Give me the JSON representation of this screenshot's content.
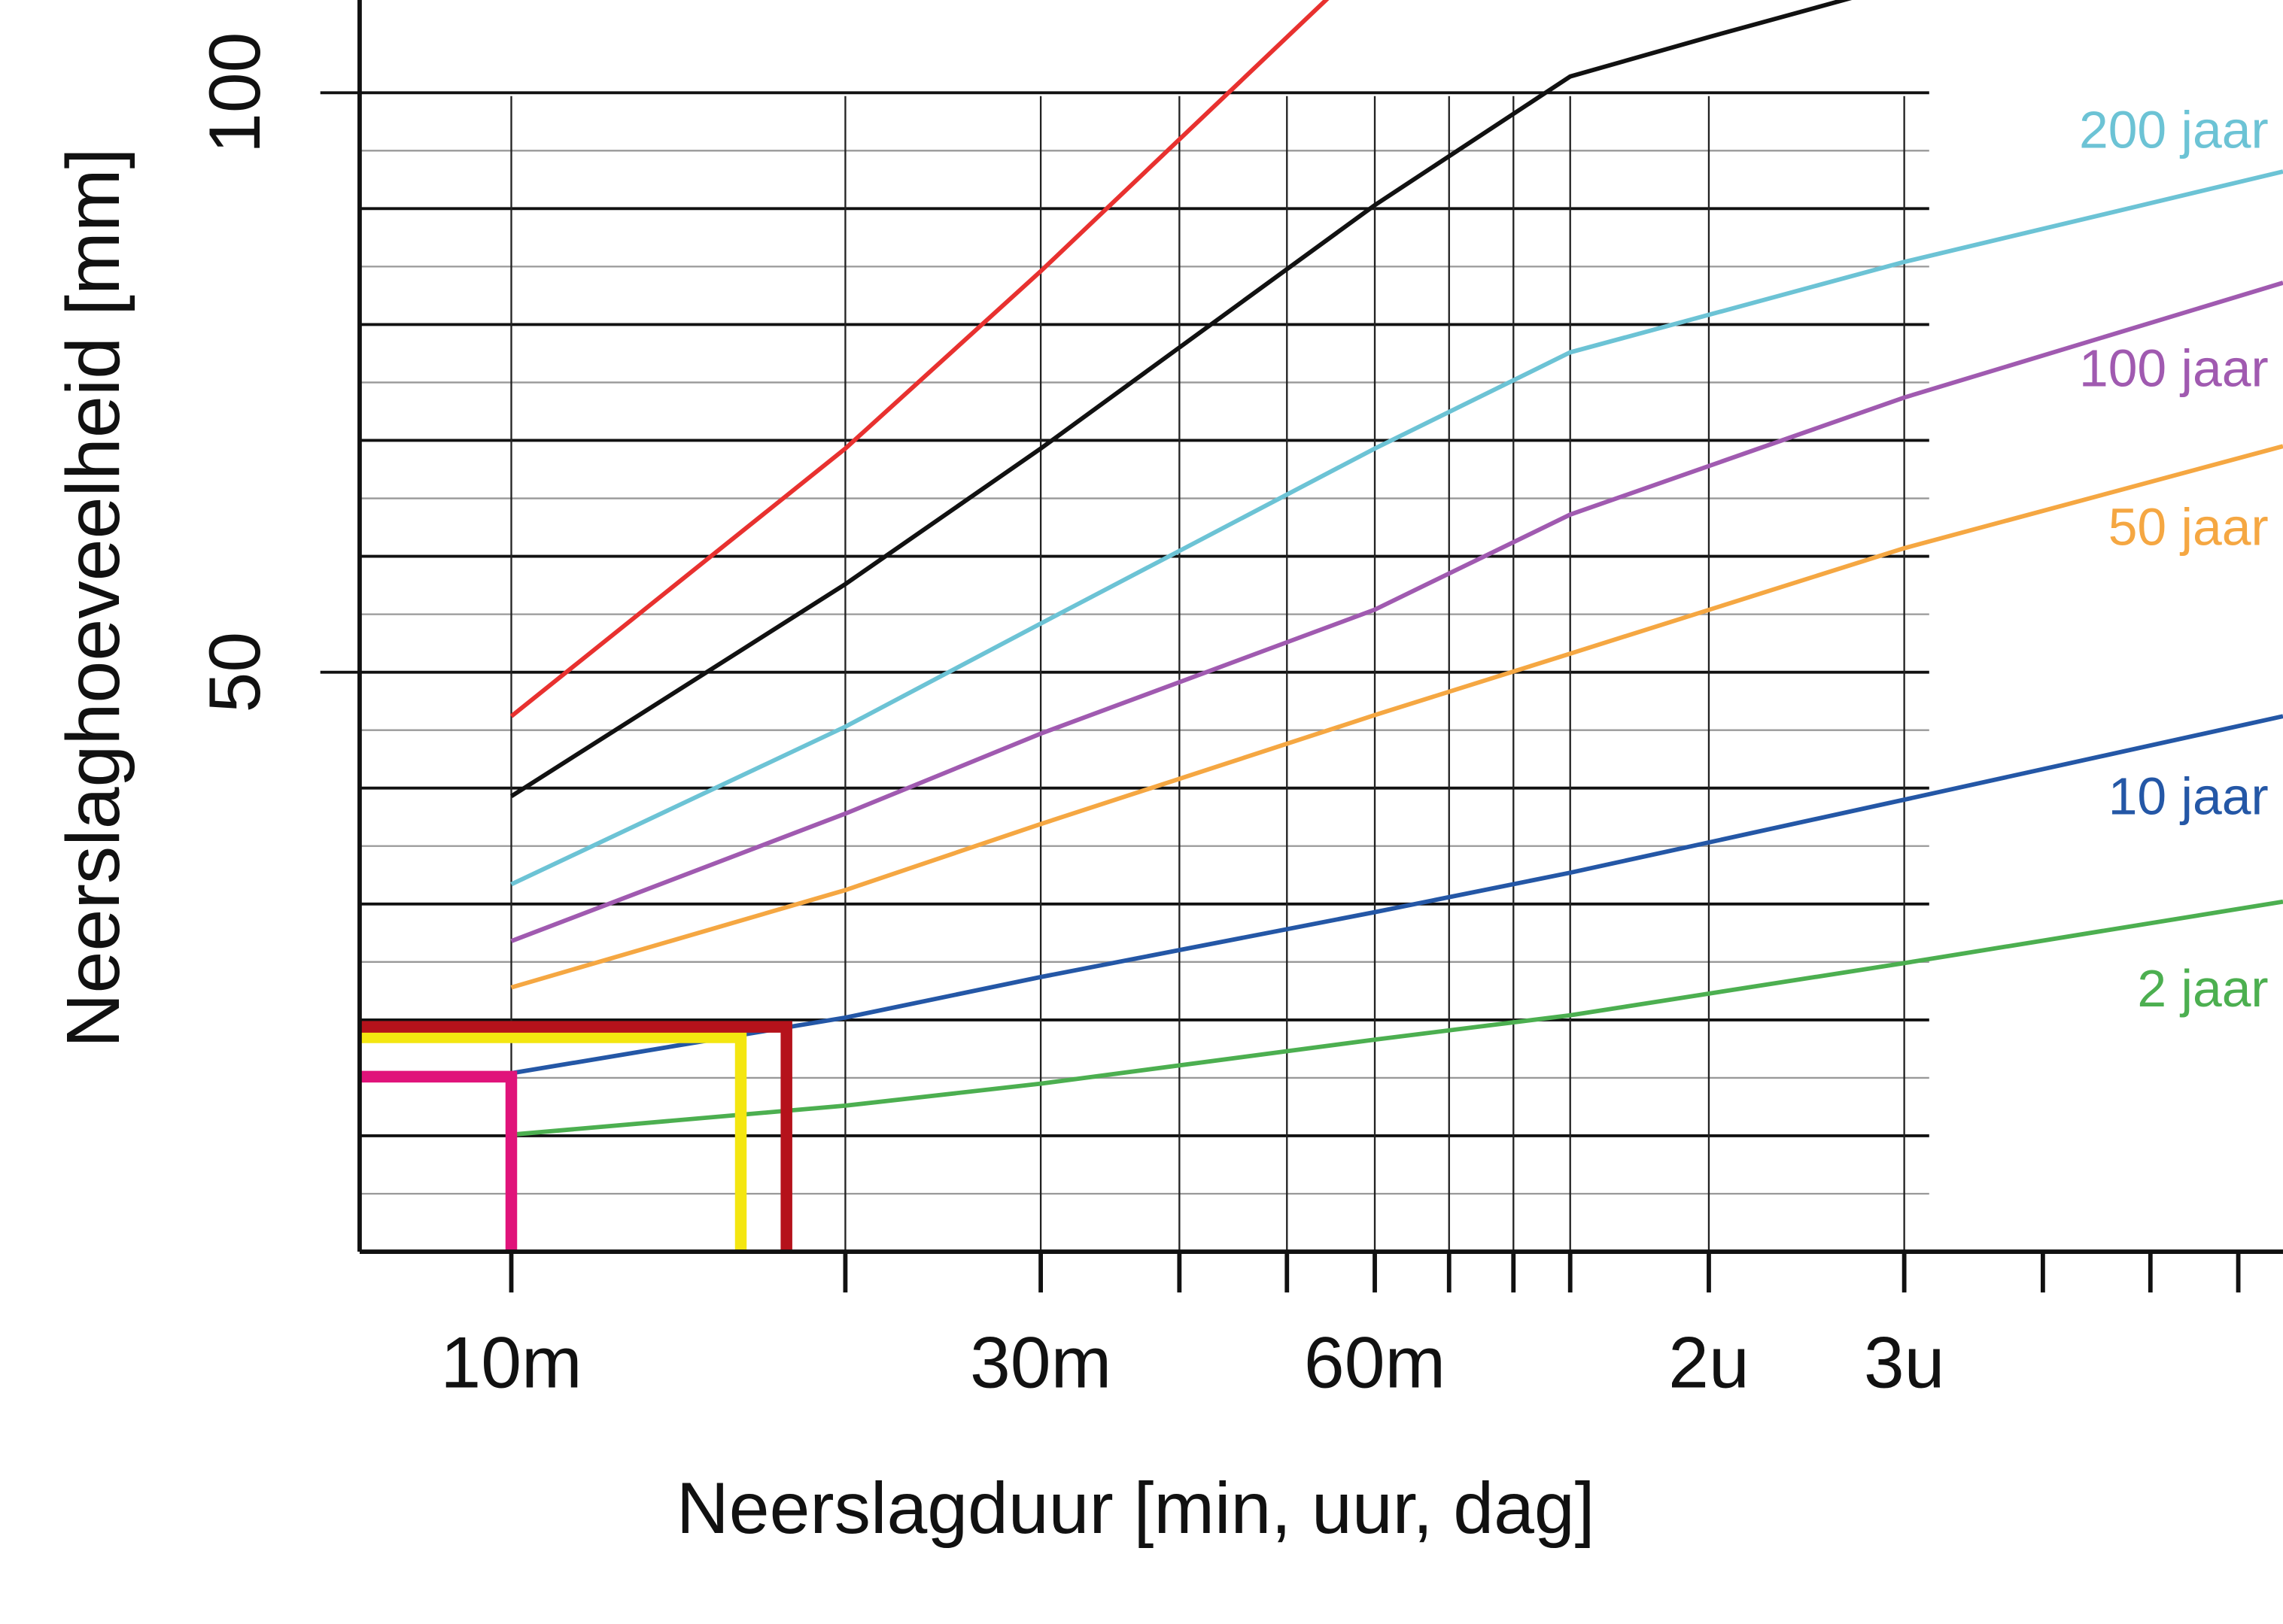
{
  "chart_data": {
    "type": "line",
    "xlabel": "Neerslagduur [min, uur, dag]",
    "ylabel": "Neerslaghoeveelheid [mm]",
    "xscale": "log",
    "xlim": [
      7.3,
      395
    ],
    "ylim": [
      0,
      108
    ],
    "xticks": [
      {
        "value": 10,
        "label": "10m"
      },
      {
        "value": 30,
        "label": "30m"
      },
      {
        "value": 60,
        "label": "60m"
      },
      {
        "value": 120,
        "label": "2u"
      },
      {
        "value": 180,
        "label": "3u"
      }
    ],
    "xminorticks": [
      20,
      40,
      50,
      70,
      80,
      90,
      240,
      300,
      360
    ],
    "xgrid": [
      10,
      20,
      30,
      40,
      50,
      60,
      70,
      80,
      90,
      120,
      180
    ],
    "yticks": [
      50,
      100
    ],
    "ygrid": [
      10,
      20,
      30,
      40,
      50,
      60,
      70,
      80,
      90,
      100
    ],
    "yminorgrid": [
      5,
      15,
      25,
      35,
      45,
      55,
      65,
      75,
      85,
      95
    ],
    "series": [
      {
        "color": "#e8312f",
        "x": [
          10,
          20,
          30,
          60
        ],
        "values": [
          46.2,
          69.3,
          84.6,
          112
        ]
      },
      {
        "color": "#111111",
        "x": [
          10,
          20,
          30,
          60,
          90,
          120,
          163
        ],
        "values": [
          39.3,
          57.6,
          69.3,
          90.3,
          101.4,
          104.8,
          108.3
        ]
      },
      {
        "name": "200 jaar",
        "color": "#6cc3d5",
        "x": [
          10,
          20,
          30,
          60,
          90,
          180,
          395
        ],
        "values": [
          31.7,
          45.3,
          54.2,
          69.3,
          77.6,
          85.4,
          93.2
        ]
      },
      {
        "name": "100 jaar",
        "color": "#a05ab0",
        "x": [
          10,
          20,
          30,
          60,
          90,
          180,
          395
        ],
        "values": [
          26.8,
          37.8,
          44.7,
          55.4,
          63.6,
          73.7,
          83.6
        ]
      },
      {
        "name": "50 jaar",
        "color": "#f5a742",
        "x": [
          10,
          20,
          30,
          60,
          90,
          180,
          395
        ],
        "values": [
          22.8,
          31.2,
          36.9,
          46.3,
          51.6,
          60.7,
          69.5
        ]
      },
      {
        "name": "10 jaar",
        "color": "#2457a6",
        "x": [
          10,
          20,
          30,
          60,
          90,
          180,
          395
        ],
        "values": [
          15.4,
          20.2,
          23.7,
          29.3,
          32.7,
          39.0,
          46.2
        ]
      },
      {
        "name": "2 jaar",
        "color": "#4caf50",
        "x": [
          10,
          20,
          30,
          60,
          90,
          180,
          395
        ],
        "values": [
          10.1,
          12.6,
          14.5,
          18.3,
          20.4,
          24.9,
          30.2
        ]
      }
    ],
    "markers": [
      {
        "color": "#e0137a",
        "x": 10,
        "y": 15.1
      },
      {
        "color": "#f4e610",
        "x": 16.1,
        "y": 18.5
      },
      {
        "color": "#b5121b",
        "x": 17.7,
        "y": 19.4
      }
    ]
  }
}
